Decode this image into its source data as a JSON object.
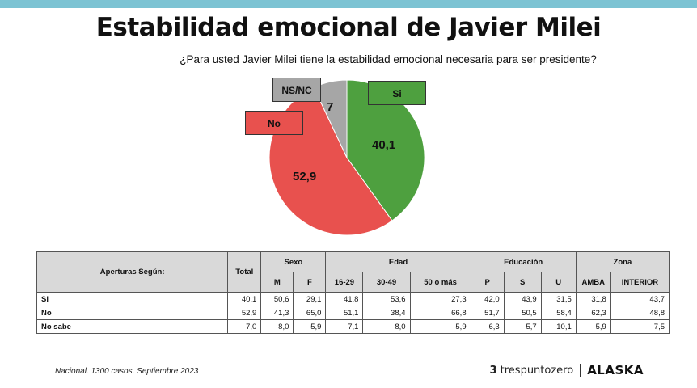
{
  "title": "Estabilidad emocional de Javier Milei",
  "subtitle": "¿Para usted Javier Milei tiene la estabilidad emocional necesaria para ser presidente?",
  "chart_data": [
    {
      "type": "pie",
      "title": "¿Para usted Javier Milei tiene la estabilidad emocional necesaria para ser presidente?",
      "slices": [
        {
          "label": "Si",
          "value": 40.1,
          "display": "40,1",
          "color": "#4ea03f"
        },
        {
          "label": "No",
          "value": 52.9,
          "display": "52,9",
          "color": "#e8514e"
        },
        {
          "label": "NS/NC",
          "value": 7.0,
          "display": "7",
          "color": "#a6a6a6"
        }
      ]
    },
    {
      "type": "table",
      "corner_label": "Aperturas Según:",
      "total_label": "Total",
      "groups": [
        {
          "name": "Sexo",
          "columns": [
            "M",
            "F"
          ]
        },
        {
          "name": "Edad",
          "columns": [
            "16-29",
            "30-49",
            "50 o más"
          ]
        },
        {
          "name": "Educación",
          "columns": [
            "P",
            "S",
            "U"
          ]
        },
        {
          "name": "Zona",
          "columns": [
            "AMBA",
            "INTERIOR"
          ]
        }
      ],
      "rows": [
        {
          "label": "Si",
          "values": [
            "40,1",
            "50,6",
            "29,1",
            "41,8",
            "53,6",
            "27,3",
            "42,0",
            "43,9",
            "31,5",
            "31,8",
            "43,7"
          ]
        },
        {
          "label": "No",
          "values": [
            "52,9",
            "41,3",
            "65,0",
            "51,1",
            "38,4",
            "66,8",
            "51,7",
            "50,5",
            "58,4",
            "62,3",
            "48,8"
          ]
        },
        {
          "label": "No sabe",
          "values": [
            "7,0",
            "8,0",
            "5,9",
            "7,1",
            "8,0",
            "5,9",
            "6,3",
            "5,7",
            "10,1",
            "5,9",
            "7,5"
          ]
        }
      ]
    }
  ],
  "footer": {
    "source": "Nacional. 1300 casos. Septiembre 2023",
    "brand1": "trespuntozero",
    "brand2": "ALASKA"
  }
}
